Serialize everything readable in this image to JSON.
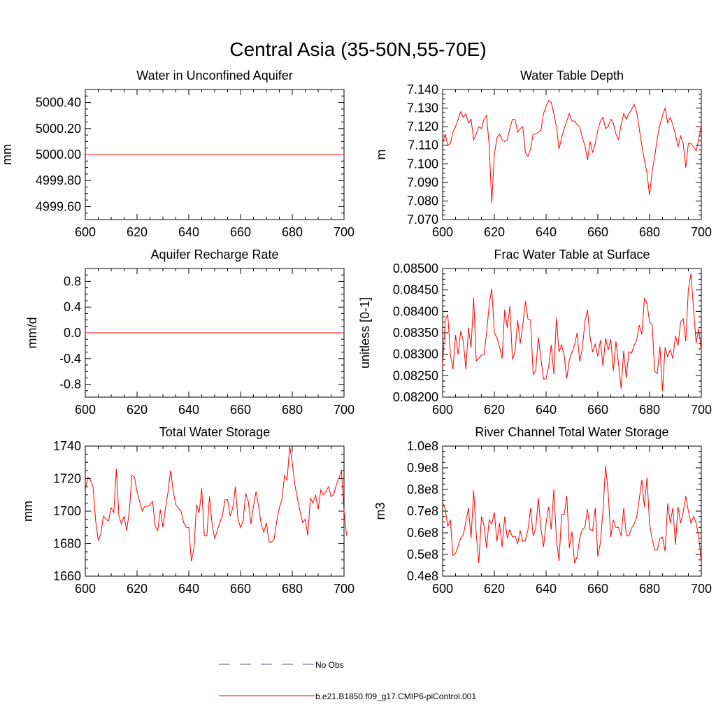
{
  "figure": {
    "title": "Central Asia (35-50N,55-70E)"
  },
  "legend": [
    {
      "label": "No Obs",
      "color": "#5555aa",
      "dash": true
    },
    {
      "label": "b.e21.B1850.f09_g17.CMIP6-piControl.001",
      "color": "#ff0000",
      "dash": false
    }
  ],
  "chart_data": [
    {
      "type": "line",
      "title": "Water in Unconfined Aquifer",
      "ylabel": "mm",
      "xlim": [
        600,
        700
      ],
      "ylim": [
        4999.5,
        5000.5
      ],
      "xticks": [
        "600",
        "620",
        "640",
        "660",
        "680",
        "700"
      ],
      "yticks": [
        {
          "v": 4999.6,
          "label": "4999.60"
        },
        {
          "v": 4999.8,
          "label": "4999.80"
        },
        {
          "v": 5000.0,
          "label": "5000.00"
        },
        {
          "v": 5000.2,
          "label": "5000.20"
        },
        {
          "v": 5000.4,
          "label": "5000.40"
        }
      ],
      "series": [
        {
          "color": "#ff0000",
          "x": [
            600,
            700
          ],
          "y": [
            5000.0,
            5000.0
          ]
        }
      ]
    },
    {
      "type": "line",
      "title": "Water Table Depth",
      "ylabel": "m",
      "xlim": [
        600,
        700
      ],
      "ylim": [
        7.07,
        7.14
      ],
      "xticks": [
        "600",
        "620",
        "640",
        "660",
        "680",
        "700"
      ],
      "yticks": [
        {
          "v": 7.07,
          "label": "7.070"
        },
        {
          "v": 7.08,
          "label": "7.080"
        },
        {
          "v": 7.09,
          "label": "7.090"
        },
        {
          "v": 7.1,
          "label": "7.100"
        },
        {
          "v": 7.11,
          "label": "7.110"
        },
        {
          "v": 7.12,
          "label": "7.120"
        },
        {
          "v": 7.13,
          "label": "7.130"
        },
        {
          "v": 7.14,
          "label": "7.140"
        }
      ],
      "series": [
        {
          "color": "#ff0000",
          "x0": 600,
          "dx": 1,
          "y": [
            7.111,
            7.116,
            7.11,
            7.111,
            7.117,
            7.12,
            7.124,
            7.128,
            7.125,
            7.127,
            7.122,
            7.124,
            7.113,
            7.116,
            7.12,
            7.119,
            7.124,
            7.126,
            7.11,
            7.079,
            7.105,
            7.114,
            7.116,
            7.113,
            7.112,
            7.113,
            7.119,
            7.124,
            7.124,
            7.117,
            7.119,
            7.12,
            7.106,
            7.104,
            7.108,
            7.116,
            7.116,
            7.117,
            7.118,
            7.127,
            7.131,
            7.134,
            7.133,
            7.127,
            7.12,
            7.108,
            7.114,
            7.119,
            7.123,
            7.127,
            7.123,
            7.123,
            7.121,
            7.12,
            7.114,
            7.11,
            7.102,
            7.112,
            7.106,
            7.111,
            7.118,
            7.123,
            7.125,
            7.119,
            7.12,
            7.124,
            7.122,
            7.116,
            7.113,
            7.121,
            7.127,
            7.124,
            7.127,
            7.129,
            7.132,
            7.128,
            7.119,
            7.11,
            7.102,
            7.095,
            7.083,
            7.096,
            7.104,
            7.114,
            7.121,
            7.126,
            7.13,
            7.122,
            7.125,
            7.121,
            7.116,
            7.109,
            7.115,
            7.111,
            7.098,
            7.111,
            7.111,
            7.109,
            7.107,
            7.113,
            7.121
          ]
        }
      ]
    },
    {
      "type": "line",
      "title": "Aquifer Recharge Rate",
      "ylabel": "mm/d",
      "xlim": [
        600,
        700
      ],
      "ylim": [
        -1.0,
        1.0
      ],
      "xticks": [
        "600",
        "620",
        "640",
        "660",
        "680",
        "700"
      ],
      "yticks": [
        {
          "v": -0.8,
          "label": "-0.8"
        },
        {
          "v": -0.4,
          "label": "-0.4"
        },
        {
          "v": 0.0,
          "label": "0.0"
        },
        {
          "v": 0.4,
          "label": "0.4"
        },
        {
          "v": 0.8,
          "label": "0.8"
        }
      ],
      "series": [
        {
          "color": "#ff0000",
          "x": [
            600,
            700
          ],
          "y": [
            0.0,
            0.0
          ]
        }
      ]
    },
    {
      "type": "line",
      "title": "Frac Water Table at Surface",
      "ylabel": "unitless [0-1]",
      "xlim": [
        600,
        700
      ],
      "ylim": [
        0.082,
        0.085
      ],
      "xticks": [
        "600",
        "620",
        "640",
        "660",
        "680",
        "700"
      ],
      "yticks": [
        {
          "v": 0.082,
          "label": "0.08200"
        },
        {
          "v": 0.0825,
          "label": "0.08250"
        },
        {
          "v": 0.083,
          "label": "0.08300"
        },
        {
          "v": 0.0835,
          "label": "0.08350"
        },
        {
          "v": 0.084,
          "label": "0.08400"
        },
        {
          "v": 0.0845,
          "label": "0.08450"
        },
        {
          "v": 0.085,
          "label": "0.08500"
        }
      ],
      "series": [
        {
          "color": "#ff0000",
          "x0": 600,
          "dx": 1,
          "y": [
            0.0827,
            0.0838,
            0.08392,
            0.083,
            0.08265,
            0.08345,
            0.083,
            0.08354,
            0.0833,
            0.08265,
            0.08362,
            0.08315,
            0.08432,
            0.08285,
            0.0829,
            0.08298,
            0.08299,
            0.0835,
            0.08415,
            0.08453,
            0.0835,
            0.08338,
            0.08318,
            0.0829,
            0.08404,
            0.08362,
            0.08412,
            0.08288,
            0.08305,
            0.0838,
            0.08325,
            0.08368,
            0.08424,
            0.08382,
            0.0838,
            0.08253,
            0.08262,
            0.0834,
            0.0829,
            0.08242,
            0.08243,
            0.08272,
            0.08322,
            0.08254,
            0.08384,
            0.08305,
            0.08322,
            0.08297,
            0.08243,
            0.08287,
            0.08305,
            0.08322,
            0.0835,
            0.08283,
            0.08313,
            0.08375,
            0.08404,
            0.0834,
            0.08305,
            0.08323,
            0.08295,
            0.08333,
            0.08272,
            0.08338,
            0.0831,
            0.08335,
            0.08262,
            0.0833,
            0.08278,
            0.0822,
            0.08308,
            0.08245,
            0.08306,
            0.08302,
            0.0832,
            0.08333,
            0.08368,
            0.08346,
            0.0843,
            0.08418,
            0.08375,
            0.08368,
            0.0826,
            0.08255,
            0.08318,
            0.08215,
            0.08316,
            0.08294,
            0.0831,
            0.0829,
            0.08343,
            0.0832,
            0.08376,
            0.08383,
            0.0833,
            0.08452,
            0.08488,
            0.08405,
            0.08326,
            0.0836,
            0.08308
          ]
        }
      ]
    },
    {
      "type": "line",
      "title": "Total Water Storage",
      "ylabel": "mm",
      "xlim": [
        600,
        700
      ],
      "ylim": [
        1660,
        1740
      ],
      "xticks": [
        "600",
        "620",
        "640",
        "660",
        "680",
        "700"
      ],
      "yticks": [
        {
          "v": 1660,
          "label": "1660"
        },
        {
          "v": 1680,
          "label": "1680"
        },
        {
          "v": 1700,
          "label": "1700"
        },
        {
          "v": 1720,
          "label": "1720"
        },
        {
          "v": 1740,
          "label": "1740"
        }
      ],
      "series": [
        {
          "color": "#ff0000",
          "x0": 600,
          "dx": 1,
          "y": [
            1713,
            1721,
            1719,
            1715,
            1694,
            1682,
            1686,
            1697,
            1695,
            1694,
            1702,
            1699,
            1726,
            1697,
            1692,
            1697,
            1688,
            1700,
            1722,
            1721,
            1712,
            1706,
            1700,
            1703,
            1703,
            1704,
            1706,
            1691,
            1688,
            1701,
            1690,
            1702,
            1712,
            1725,
            1712,
            1704,
            1702,
            1700,
            1693,
            1690,
            1690,
            1669,
            1677,
            1704,
            1699,
            1714,
            1685,
            1685,
            1709,
            1692,
            1683,
            1688,
            1693,
            1697,
            1707,
            1707,
            1697,
            1702,
            1715,
            1695,
            1690,
            1694,
            1711,
            1706,
            1692,
            1703,
            1712,
            1703,
            1692,
            1687,
            1693,
            1681,
            1681,
            1683,
            1694,
            1702,
            1707,
            1722,
            1719,
            1740,
            1730,
            1716,
            1708,
            1700,
            1693,
            1695,
            1685,
            1708,
            1705,
            1710,
            1701,
            1713,
            1710,
            1712,
            1715,
            1709,
            1710,
            1716,
            1720,
            1725,
            1700,
            1685
          ]
        }
      ]
    },
    {
      "type": "line",
      "title": "River Channel Total Water Storage",
      "ylabel": "m3",
      "xlim": [
        600,
        700
      ],
      "ylim": [
        40000000,
        100000000
      ],
      "xticks": [
        "600",
        "620",
        "640",
        "660",
        "680",
        "700"
      ],
      "yticks": [
        {
          "v": 40000000,
          "label": "0.4e8"
        },
        {
          "v": 50000000,
          "label": "0.5e8"
        },
        {
          "v": 60000000,
          "label": "0.6e8"
        },
        {
          "v": 70000000,
          "label": "0.7e8"
        },
        {
          "v": 80000000,
          "label": "0.8e8"
        },
        {
          "v": 90000000,
          "label": "0.9e8"
        },
        {
          "v": 100000000,
          "label": "1.0e8"
        }
      ],
      "series": [
        {
          "color": "#ff0000",
          "x0": 600,
          "dx": 1,
          "y": [
            74000000,
            71000000,
            63000000,
            66000000,
            49500000,
            50500000,
            54000000,
            57500000,
            59000000,
            65000000,
            71500000,
            57500000,
            79500000,
            59500000,
            46000000,
            67500000,
            63500000,
            53000000,
            66000000,
            64000000,
            69500000,
            56000000,
            64500000,
            53500000,
            67500000,
            57500000,
            61500000,
            58000000,
            58500000,
            55000000,
            61000000,
            56000000,
            56500000,
            61500000,
            71500000,
            58500000,
            62000000,
            76000000,
            62000000,
            53500000,
            64500000,
            72000000,
            61500000,
            80000000,
            57000000,
            47000000,
            68500000,
            68500000,
            77000000,
            53000000,
            60500000,
            46000000,
            49000000,
            57500000,
            61500000,
            62500000,
            71000000,
            61500000,
            61000000,
            71500000,
            49000000,
            55500000,
            70500000,
            91000000,
            78500000,
            58000000,
            66000000,
            62500000,
            62500000,
            58500000,
            71500000,
            59000000,
            58500000,
            62000000,
            64000000,
            67000000,
            75500000,
            84500000,
            72000000,
            85500000,
            64000000,
            57000000,
            52000000,
            52000000,
            57500000,
            58000000,
            51500000,
            73500000,
            64500000,
            71500000,
            54500000,
            72000000,
            64500000,
            69500000,
            77000000,
            70000000,
            64500000,
            67500000,
            64500000,
            58500000,
            46000000
          ]
        }
      ]
    }
  ]
}
